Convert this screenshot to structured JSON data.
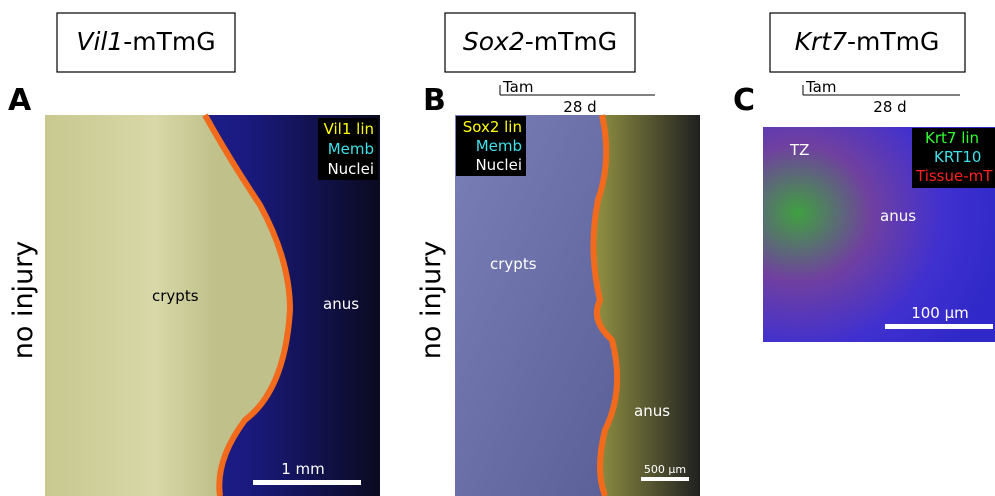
{
  "panels": [
    {
      "letter": "A",
      "title_gene": "Vil1",
      "title_suffix": "-mTmG",
      "condition": "no injury",
      "legend": [
        "Vil1 lin",
        "Memb",
        "Nuclei"
      ],
      "labels": [
        "crypts",
        "anus"
      ],
      "scale_bar": "1 mm"
    },
    {
      "letter": "B",
      "title_gene": "Sox2",
      "title_suffix": "-mTmG",
      "condition": "no injury",
      "timeline_start": "Tam",
      "timeline_end": "28 d",
      "legend": [
        "Sox2 lin",
        "Memb",
        "Nuclei"
      ],
      "labels": [
        "crypts",
        "anus"
      ],
      "scale_bar": "500 µm"
    },
    {
      "letter": "C",
      "title_gene": "Krt7",
      "title_suffix": "-mTmG",
      "timeline_start": "Tam",
      "timeline_end": "28 d",
      "legend": [
        "Krt7 lin",
        "KRT10",
        "Tissue-mT"
      ],
      "labels": [
        "TZ",
        "anus"
      ],
      "scale_bar": "100 µm"
    }
  ]
}
